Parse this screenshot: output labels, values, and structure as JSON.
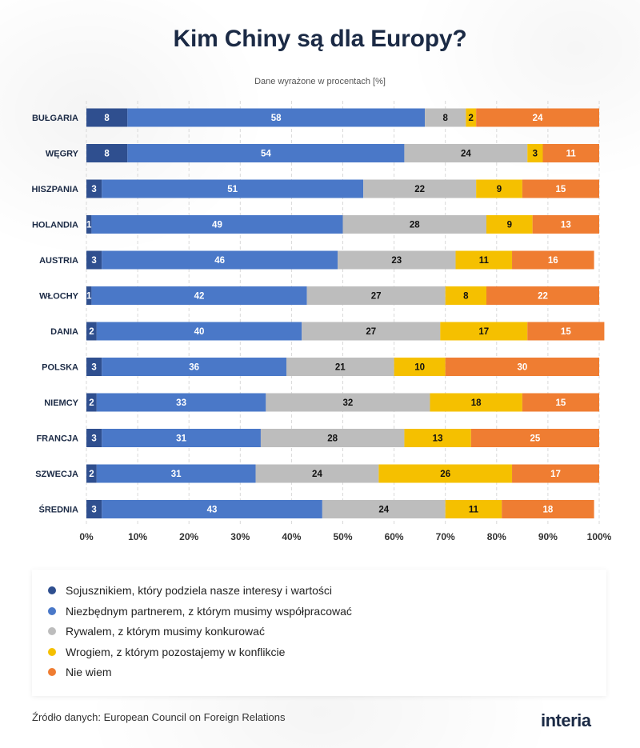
{
  "chart_data": {
    "type": "bar",
    "orientation": "horizontal",
    "stacked": true,
    "title": "Kim Chiny są dla Europy?",
    "subtitle": "Dane wyrażone w procentach [%]",
    "categories": [
      "BUŁGARIA",
      "WĘGRY",
      "HISZPANIA",
      "HOLANDIA",
      "AUSTRIA",
      "WŁOCHY",
      "DANIA",
      "POLSKA",
      "NIEMCY",
      "FRANCJA",
      "SZWECJA",
      "ŚREDNIA"
    ],
    "series": [
      {
        "name": "Sojusznikiem, który podziela nasze interesy i wartości",
        "color": "#2f4f8f",
        "values": [
          8,
          8,
          3,
          1,
          3,
          1,
          2,
          3,
          2,
          3,
          2,
          3
        ]
      },
      {
        "name": "Niezbędnym partnerem, z którym musimy współpracować",
        "color": "#4a78c8",
        "values": [
          58,
          54,
          51,
          49,
          46,
          42,
          40,
          36,
          33,
          31,
          31,
          43
        ]
      },
      {
        "name": "Rywalem, z którym musimy konkurować",
        "color": "#bdbdbd",
        "values": [
          8,
          24,
          22,
          28,
          23,
          27,
          27,
          21,
          32,
          28,
          24,
          24
        ]
      },
      {
        "name": "Wrogiem, z którym pozostajemy w konflikcie",
        "color": "#f5c000",
        "values": [
          2,
          3,
          9,
          9,
          11,
          8,
          17,
          10,
          18,
          13,
          26,
          11
        ]
      },
      {
        "name": "Nie wiem",
        "color": "#ef7d32",
        "values": [
          24,
          11,
          15,
          13,
          16,
          22,
          15,
          30,
          15,
          25,
          17,
          18
        ]
      }
    ],
    "xlim": [
      0,
      100
    ],
    "xticks": [
      "0%",
      "10%",
      "20%",
      "30%",
      "40%",
      "50%",
      "60%",
      "70%",
      "80%",
      "90%",
      "100%"
    ],
    "grid": true,
    "legend_position": "bottom"
  },
  "footer": {
    "source": "Źródło danych: European Council on Foreign Relations",
    "logo": "interia"
  }
}
